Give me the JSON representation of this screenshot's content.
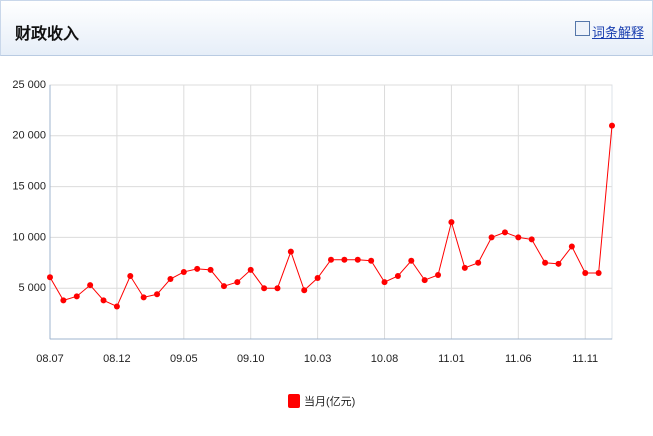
{
  "header": {
    "title": "财政收入",
    "link": "词条解释"
  },
  "chart_data": {
    "type": "line",
    "categories": [
      "08.07",
      null,
      null,
      null,
      null,
      "08.12",
      null,
      null,
      null,
      null,
      "09.05",
      null,
      null,
      null,
      null,
      "09.10",
      null,
      null,
      null,
      null,
      "10.03",
      null,
      null,
      null,
      null,
      "10.08",
      null,
      null,
      null,
      null,
      "11.01",
      null,
      null,
      null,
      null,
      "11.06",
      null,
      null,
      null,
      null,
      "11.11",
      null,
      null
    ],
    "series": [
      {
        "name": "当月(亿元)",
        "color": "#ff0000",
        "values": [
          6080,
          3800,
          4200,
          5300,
          3800,
          3200,
          6200,
          4100,
          4400,
          5900,
          6600,
          6900,
          6800,
          5200,
          5600,
          6800,
          5000,
          5000,
          8600,
          4800,
          6000,
          7800,
          7800,
          7800,
          7700,
          5600,
          6200,
          7700,
          5800,
          6300,
          11500,
          7000,
          7500,
          10000,
          10500,
          10000,
          9800,
          7500,
          7400,
          9100,
          6500,
          6500,
          21000
        ]
      }
    ],
    "ylim": [
      0,
      25000
    ],
    "yticks": [
      {
        "value": 5000,
        "label": "5 000"
      },
      {
        "value": 10000,
        "label": "10 000"
      },
      {
        "value": 15000,
        "label": "15 000"
      },
      {
        "value": 20000,
        "label": "20 000"
      },
      {
        "value": 25000,
        "label": "25 000"
      }
    ],
    "grid": true
  }
}
